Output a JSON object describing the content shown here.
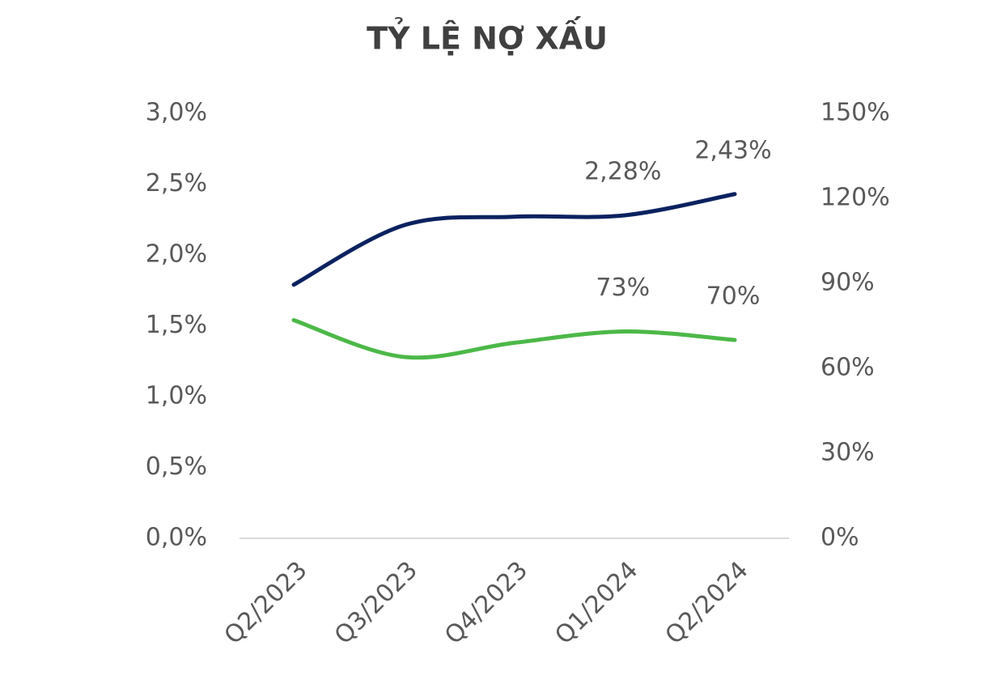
{
  "chart_data": {
    "type": "line",
    "title": "TỶ LỆ NỢ XẤU",
    "categories": [
      "Q2/2023",
      "Q3/2023",
      "Q4/2023",
      "Q1/2024",
      "Q2/2024"
    ],
    "series": [
      {
        "color": "#0b2260",
        "values": [
          1.79,
          2.21,
          2.27,
          2.28,
          2.43
        ],
        "value_labels": [
          null,
          null,
          null,
          "2,28%",
          "2,43%"
        ]
      },
      {
        "color": "#4cb848",
        "axis": "y2",
        "values": [
          77,
          64,
          69,
          73,
          70
        ],
        "value_labels": [
          null,
          null,
          null,
          "73%",
          "70%"
        ]
      }
    ],
    "ylim": [
      0,
      3
    ],
    "yticks": [
      {
        "value": 0,
        "label": "0,0%"
      },
      {
        "value": 0.5,
        "label": "0,5%"
      },
      {
        "value": 1,
        "label": "1,0%"
      },
      {
        "value": 1.5,
        "label": "1,5%"
      },
      {
        "value": 2,
        "label": "2,0%"
      },
      {
        "value": 2.5,
        "label": "2,5%"
      },
      {
        "value": 3,
        "label": "3,0%"
      }
    ],
    "y2lim": [
      0,
      150
    ],
    "y2ticks": [
      {
        "value": 0,
        "label": "0%"
      },
      {
        "value": 30,
        "label": "30%"
      },
      {
        "value": 60,
        "label": "60%"
      },
      {
        "value": 90,
        "label": "90%"
      },
      {
        "value": 120,
        "label": "120%"
      },
      {
        "value": 150,
        "label": "150%"
      }
    ]
  }
}
